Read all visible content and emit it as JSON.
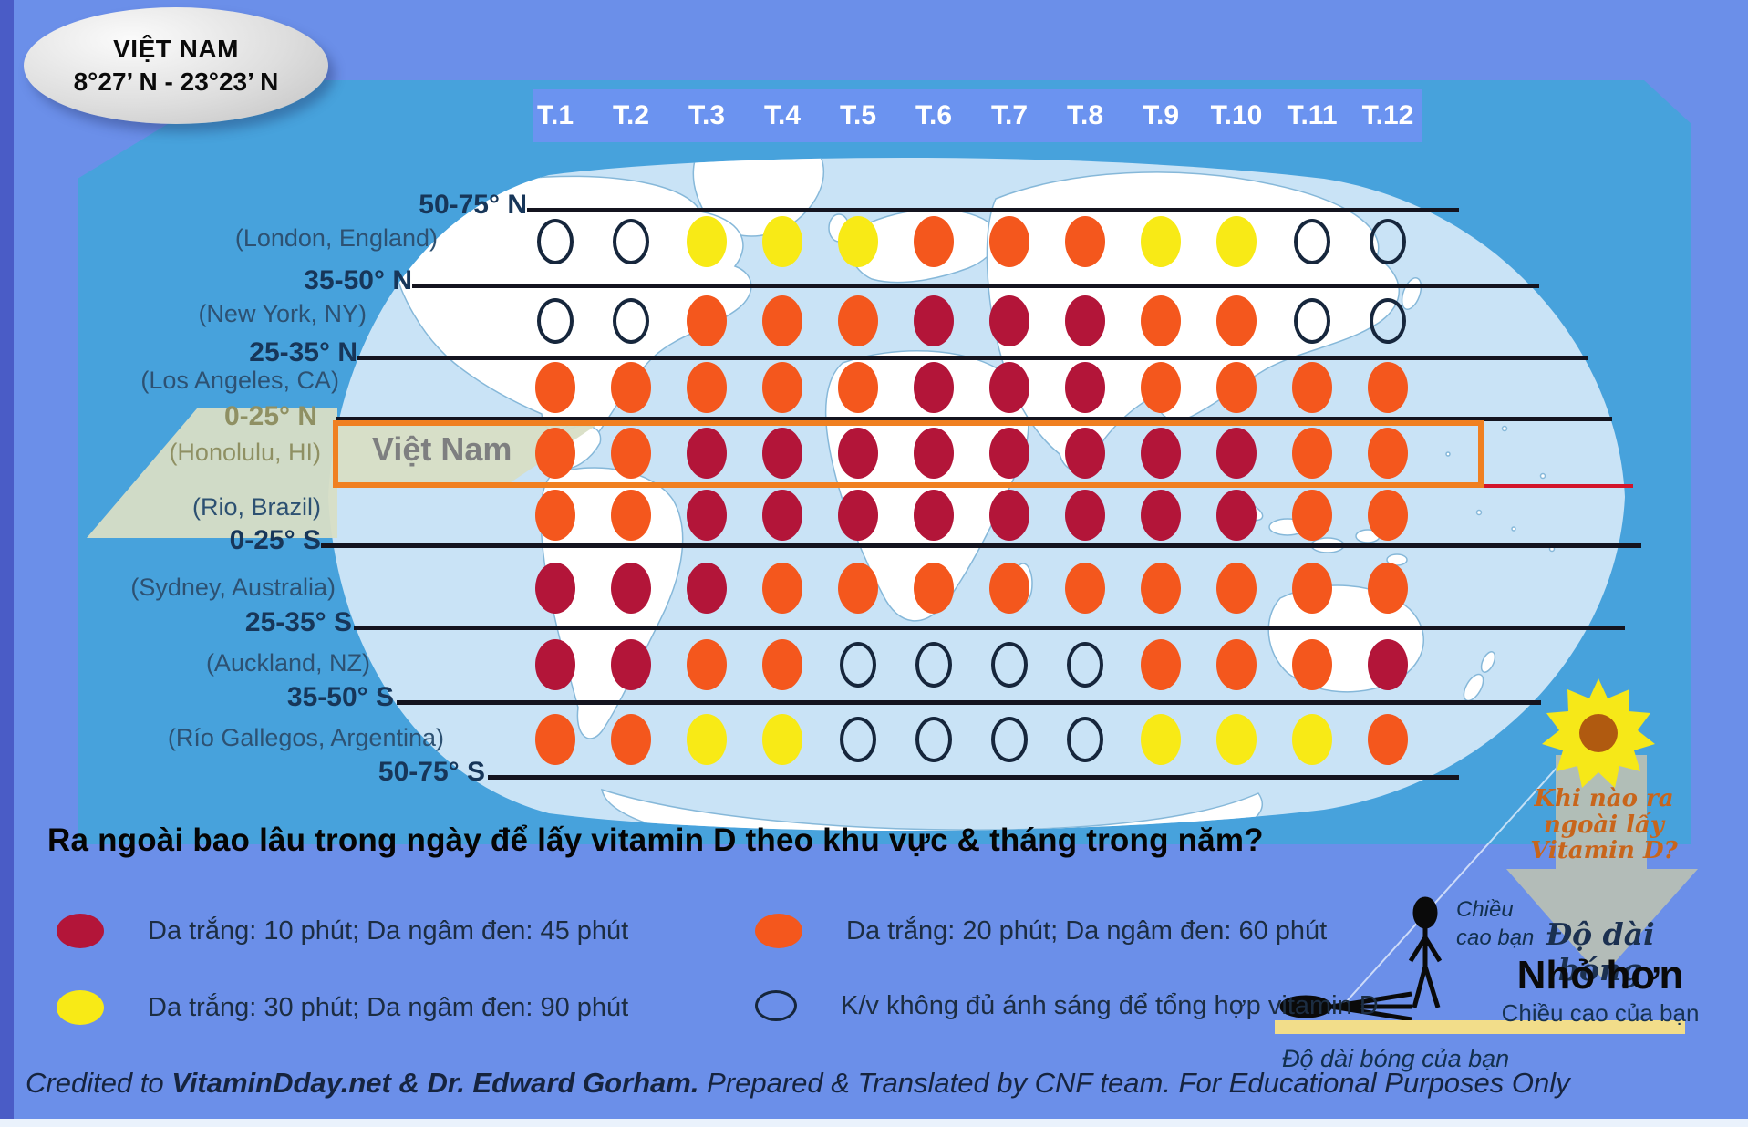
{
  "badge": {
    "title": "VIỆT NAM",
    "subtitle": "8°27’ N - 23°23’ N"
  },
  "title_question": "Ra ngoài bao lâu trong ngày để lấy vitamin D theo khu vực & tháng trong năm?",
  "highlight_label": "Việt Nam",
  "chart_data": {
    "type": "heatmap",
    "title": "Ra ngoài bao lâu trong ngày để lấy vitamin D theo khu vực & tháng trong năm?",
    "columns": [
      "T.1",
      "T.2",
      "T.3",
      "T.4",
      "T.5",
      "T.6",
      "T.7",
      "T.8",
      "T.9",
      "T.10",
      "T.11",
      "T.12"
    ],
    "latitude_bands": [
      "50-75° N",
      "35-50° N",
      "25-35° N",
      "0-25° N",
      "0-25° S",
      "25-35° S",
      "35-50° S",
      "50-75° S"
    ],
    "rows": [
      {
        "city": "(London, England)",
        "values": [
          "none",
          "none",
          "yellow",
          "yellow",
          "yellow",
          "orange",
          "orange",
          "orange",
          "yellow",
          "yellow",
          "none",
          "none"
        ]
      },
      {
        "city": "(New York, NY)",
        "values": [
          "none",
          "none",
          "orange",
          "orange",
          "orange",
          "red",
          "red",
          "red",
          "orange",
          "orange",
          "none",
          "none"
        ]
      },
      {
        "city": "(Los Angeles, CA)",
        "values": [
          "orange",
          "orange",
          "orange",
          "orange",
          "orange",
          "red",
          "red",
          "red",
          "orange",
          "orange",
          "orange",
          "orange"
        ]
      },
      {
        "city": "(Honolulu, HI)",
        "values": [
          "orange",
          "orange",
          "red",
          "red",
          "red",
          "red",
          "red",
          "red",
          "red",
          "red",
          "orange",
          "orange"
        ],
        "highlight": "Việt Nam"
      },
      {
        "city": "(Rio, Brazil)",
        "values": [
          "orange",
          "orange",
          "red",
          "red",
          "red",
          "red",
          "red",
          "red",
          "red",
          "red",
          "orange",
          "orange"
        ]
      },
      {
        "city": "(Sydney, Australia)",
        "values": [
          "red",
          "red",
          "red",
          "orange",
          "orange",
          "orange",
          "orange",
          "orange",
          "orange",
          "orange",
          "orange",
          "orange"
        ]
      },
      {
        "city": "(Auckland, NZ)",
        "values": [
          "red",
          "red",
          "orange",
          "orange",
          "none",
          "none",
          "none",
          "none",
          "orange",
          "orange",
          "orange",
          "red"
        ]
      },
      {
        "city": "(Río Gallegos, Argentina)",
        "values": [
          "orange",
          "orange",
          "yellow",
          "yellow",
          "none",
          "none",
          "none",
          "none",
          "yellow",
          "yellow",
          "yellow",
          "orange"
        ]
      }
    ],
    "legend_position": "bottom",
    "value_meaning": {
      "red": "Da trắng: 10 phút; Da ngâm đen: 45 phút",
      "orange": "Da trắng: 20 phút; Da ngâm đen: 60 phút",
      "yellow": "Da trắng: 30 phút; Da ngâm đen: 90 phút",
      "none": "K/v không đủ ánh sáng để tổng hợp vitamin D"
    }
  },
  "legend": [
    {
      "marker": "red",
      "text": "Da trắng: 10 phút; Da ngâm đen: 45 phút"
    },
    {
      "marker": "orange",
      "text": "Da trắng: 20 phút; Da ngâm đen: 60 phút"
    },
    {
      "marker": "yellow",
      "text": "Da trắng: 30 phút; Da ngâm đen: 90 phút"
    },
    {
      "marker": "none",
      "text": "K/v không đủ ánh sáng để tổng hợp vitamin D"
    }
  ],
  "colors": {
    "red": "#b31539",
    "orange": "#f4571d",
    "yellow": "#f8ea16",
    "empty_stroke": "#16263c",
    "vietnam_border": "#f08021",
    "map_panel": "#47a2dc",
    "ocean": "#c9e3f6"
  },
  "annotation": {
    "when_question": "Khi nào ra ngoài lấy Vitamin D?",
    "your_height": "Chiều cao bạn",
    "shadow_length": "Độ dài bóng",
    "smaller": "Nhỏ hơn",
    "your_height_full": "Chiều cao của bạn",
    "your_shadow_length": "Độ dài bóng của bạn"
  },
  "credit": {
    "prefix": "Credited to ",
    "bold": "VitaminDday.net & Dr. Edward Gorham.",
    "suffix": " Prepared & Translated by CNF team. For Educational Purposes Only"
  }
}
